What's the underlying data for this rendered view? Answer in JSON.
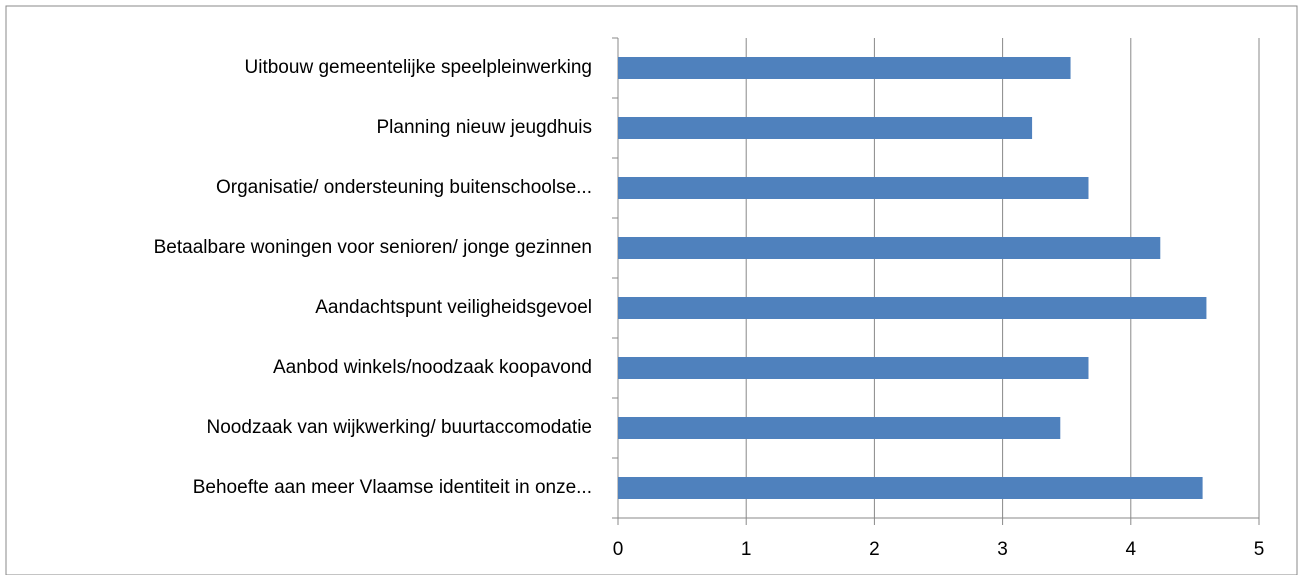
{
  "chart_data": {
    "type": "bar",
    "orientation": "horizontal",
    "categories": [
      "Uitbouw gemeentelijke speelpleinwerking",
      "Planning nieuw jeugdhuis",
      "Organisatie/ ondersteuning buitenschoolse...",
      "Betaalbare woningen voor senioren/ jonge gezinnen",
      "Aandachtspunt veiligheidsgevoel",
      "Aanbod winkels/noodzaak koopavond",
      "Noodzaak van wijkwerking/ buurtaccomodatie",
      "Behoefte aan meer Vlaamse identiteit in onze..."
    ],
    "values": [
      3.53,
      3.23,
      3.67,
      4.23,
      4.59,
      3.67,
      3.45,
      4.56
    ],
    "color": "#4f81bd",
    "xlim": [
      0,
      5
    ],
    "xticks": [
      0,
      1,
      2,
      3,
      4,
      5
    ],
    "grid": true
  }
}
